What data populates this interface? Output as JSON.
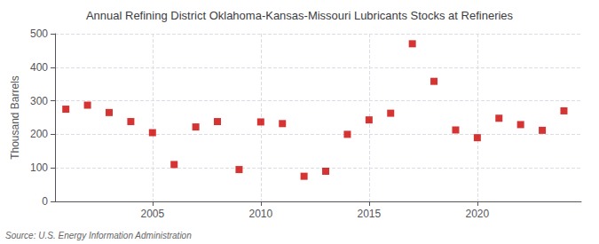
{
  "chart_data": {
    "type": "scatter",
    "title": "Annual Refining District Oklahoma-Kansas-Missouri Lubricants Stocks at Refineries",
    "ylabel": "Thousand Barrels",
    "source": "Source: U.S. Energy Information Administration",
    "x": [
      2001,
      2002,
      2003,
      2004,
      2005,
      2006,
      2007,
      2008,
      2009,
      2010,
      2011,
      2012,
      2013,
      2014,
      2015,
      2016,
      2017,
      2018,
      2019,
      2020,
      2021,
      2022,
      2023,
      2024
    ],
    "values": [
      275,
      287,
      265,
      238,
      205,
      110,
      222,
      238,
      95,
      237,
      232,
      75,
      90,
      200,
      243,
      263,
      470,
      358,
      213,
      190,
      248,
      229,
      212,
      270
    ],
    "color": "#cc0000",
    "marker": "square",
    "xlim": [
      2000.5,
      2024.8
    ],
    "xticks": [
      2005,
      2010,
      2015,
      2020
    ],
    "ylim": [
      0,
      500
    ],
    "yticks": [
      0,
      100,
      200,
      300,
      400,
      500
    ],
    "grid": true
  }
}
